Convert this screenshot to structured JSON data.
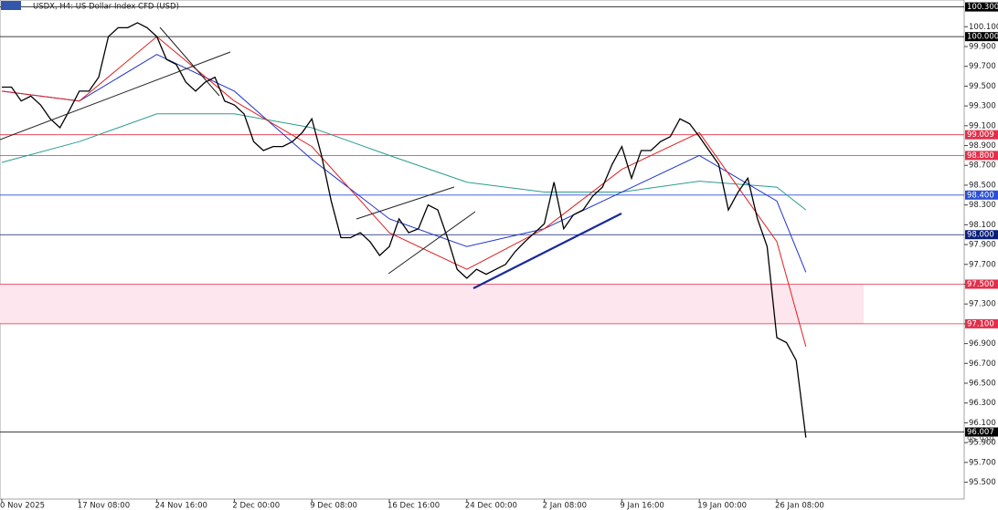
{
  "chart_data": {
    "type": "line",
    "title": "USDX, H4:  US Dollar Index CFD (USD)",
    "categories": [
      "0 Nov 2025",
      null,
      null,
      null,
      null,
      null,
      null,
      null,
      "17 Nov 08:00",
      null,
      null,
      null,
      null,
      null,
      null,
      null,
      "24 Nov 16:00",
      null,
      null,
      null,
      null,
      null,
      null,
      null,
      "2 Dec 00:00",
      null,
      null,
      null,
      null,
      null,
      null,
      null,
      "9 Dec 08:00",
      null,
      null,
      null,
      null,
      null,
      null,
      null,
      "16 Dec 16:00",
      null,
      null,
      null,
      null,
      null,
      null,
      null,
      "24 Dec 00:00",
      null,
      null,
      null,
      null,
      null,
      null,
      null,
      "2 Jan 08:00",
      null,
      null,
      null,
      null,
      null,
      null,
      null,
      "9 Jan 16:00",
      null,
      null,
      null,
      null,
      null,
      null,
      null,
      "19 Jan 00:00",
      null,
      null,
      null,
      null,
      null,
      null,
      null,
      "26 Jan 08:00",
      null,
      null,
      null
    ],
    "values": [
      99.49,
      99.49,
      99.35,
      99.4,
      99.31,
      99.17,
      99.08,
      99.26,
      99.45,
      99.45,
      99.59,
      100.0,
      100.09,
      100.09,
      100.14,
      100.09,
      100.0,
      99.77,
      99.72,
      99.54,
      99.45,
      99.54,
      99.59,
      99.35,
      99.31,
      99.22,
      98.94,
      98.85,
      98.89,
      98.89,
      98.94,
      99.03,
      99.17,
      98.8,
      98.34,
      97.97,
      97.97,
      98.02,
      97.93,
      97.79,
      97.88,
      98.16,
      98.02,
      98.06,
      98.3,
      98.25,
      97.97,
      97.65,
      97.56,
      97.65,
      97.6,
      97.65,
      97.7,
      97.83,
      97.93,
      98.02,
      98.11,
      98.53,
      98.06,
      98.2,
      98.25,
      98.39,
      98.48,
      98.71,
      98.89,
      98.57,
      98.85,
      98.85,
      98.94,
      98.99,
      99.17,
      99.12,
      98.99,
      98.85,
      98.71,
      98.25,
      98.43,
      98.57,
      98.16,
      97.88,
      96.96,
      96.91,
      96.73,
      95.95
    ],
    "color": "#000000",
    "series": [
      {
        "color": "#2a9d8f",
        "x": [
          0,
          8,
          16,
          24,
          32,
          40,
          48,
          56,
          64,
          72,
          80,
          83
        ],
        "values": [
          98.73,
          98.94,
          99.22,
          99.22,
          99.08,
          98.8,
          98.53,
          98.43,
          98.43,
          98.54,
          98.48,
          98.25
        ]
      },
      {
        "color": "#2233cc",
        "x": [
          0,
          8,
          16,
          24,
          32,
          40,
          48,
          56,
          64,
          72,
          80,
          83
        ],
        "values": [
          99.45,
          99.35,
          99.82,
          99.45,
          98.76,
          98.16,
          97.88,
          98.06,
          98.43,
          98.8,
          98.34,
          97.62
        ]
      },
      {
        "color": "#e02020",
        "x": [
          0,
          8,
          16,
          24,
          32,
          40,
          48,
          56,
          64,
          72,
          80,
          83
        ],
        "values": [
          99.45,
          99.35,
          100.0,
          99.35,
          98.89,
          98.02,
          97.65,
          98.06,
          98.66,
          99.03,
          97.93,
          96.87
        ]
      }
    ],
    "ylim": [
      95.33,
      100.37
    ],
    "yticks": [
      {
        "value": 100.1,
        "label": "100.100"
      },
      {
        "value": 99.9,
        "label": "99.900"
      },
      {
        "value": 99.7,
        "label": "99.700"
      },
      {
        "value": 99.5,
        "label": "99.500"
      },
      {
        "value": 99.3,
        "label": "99.300"
      },
      {
        "value": 99.1,
        "label": "99.100"
      },
      {
        "value": 98.9,
        "label": "98.900"
      },
      {
        "value": 98.7,
        "label": "98.700"
      },
      {
        "value": 98.5,
        "label": "98.500"
      },
      {
        "value": 98.3,
        "label": "98.300"
      },
      {
        "value": 98.1,
        "label": "98.100"
      },
      {
        "value": 97.9,
        "label": "97.900"
      },
      {
        "value": 97.7,
        "label": "97.700"
      },
      {
        "value": 97.5,
        "label": "97.500"
      },
      {
        "value": 97.3,
        "label": "97.300"
      },
      {
        "value": 97.1,
        "label": "97.100"
      },
      {
        "value": 96.9,
        "label": "96.900"
      },
      {
        "value": 96.7,
        "label": "96.700"
      },
      {
        "value": 96.5,
        "label": "96.500"
      },
      {
        "value": 96.3,
        "label": "96.300"
      },
      {
        "value": 96.1,
        "label": "96.100"
      },
      {
        "value": 95.9,
        "label": "95.900"
      },
      {
        "value": 95.7,
        "label": "95.700"
      },
      {
        "value": 95.5,
        "label": "95.500"
      }
    ],
    "levels": [
      {
        "value": 100.3,
        "label": "100.300",
        "color": "#000000"
      },
      {
        "value": 100.0,
        "label": "100.000",
        "color": "#000000"
      },
      {
        "value": 99.009,
        "label": "99.009",
        "color": "#e0304a"
      },
      {
        "value": 98.8,
        "label": "98.800",
        "color": "#e0304a"
      },
      {
        "value": 98.4,
        "label": "98.400",
        "color": "#2a4fd0"
      },
      {
        "value": 98.0,
        "label": "98.000",
        "color": "#0a1f7a"
      },
      {
        "value": 97.5,
        "label": "97.500",
        "color": "#e0304a"
      },
      {
        "value": 97.1,
        "label": "97.100",
        "color": "#e0304a"
      },
      {
        "value": 96.007,
        "label": "96.007",
        "color": "#000000"
      }
    ],
    "bid_label": {
      "value": 95.949,
      "label": "95.949"
    },
    "zone": {
      "from": 97.1,
      "to": 97.5,
      "color": "#fde6ee"
    }
  }
}
